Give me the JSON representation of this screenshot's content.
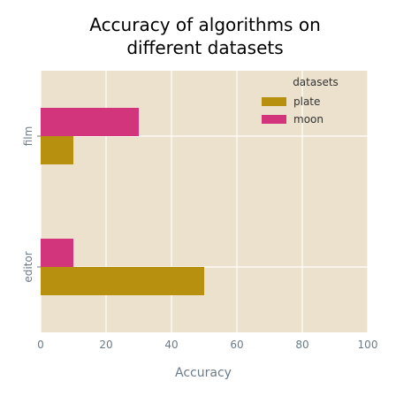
{
  "chart_data": {
    "type": "bar",
    "orientation": "horizontal",
    "title": "Accuracy of algorithms on different datasets",
    "title_lines": [
      "Accuracy of algorithms on",
      "different datasets"
    ],
    "xlabel": "Accuracy",
    "ylabel": "",
    "xlim": [
      0,
      100
    ],
    "x_ticks": [
      0,
      20,
      40,
      60,
      80,
      100
    ],
    "categories": [
      "film",
      "editor"
    ],
    "series": [
      {
        "name": "plate",
        "color": "#b8900f",
        "values": [
          10,
          50
        ]
      },
      {
        "name": "moon",
        "color": "#d3357d",
        "values": [
          30,
          10
        ]
      }
    ],
    "legend": {
      "title": "datasets",
      "placement": "top-right"
    },
    "grid": true,
    "background_color": "#ebe1cd"
  }
}
